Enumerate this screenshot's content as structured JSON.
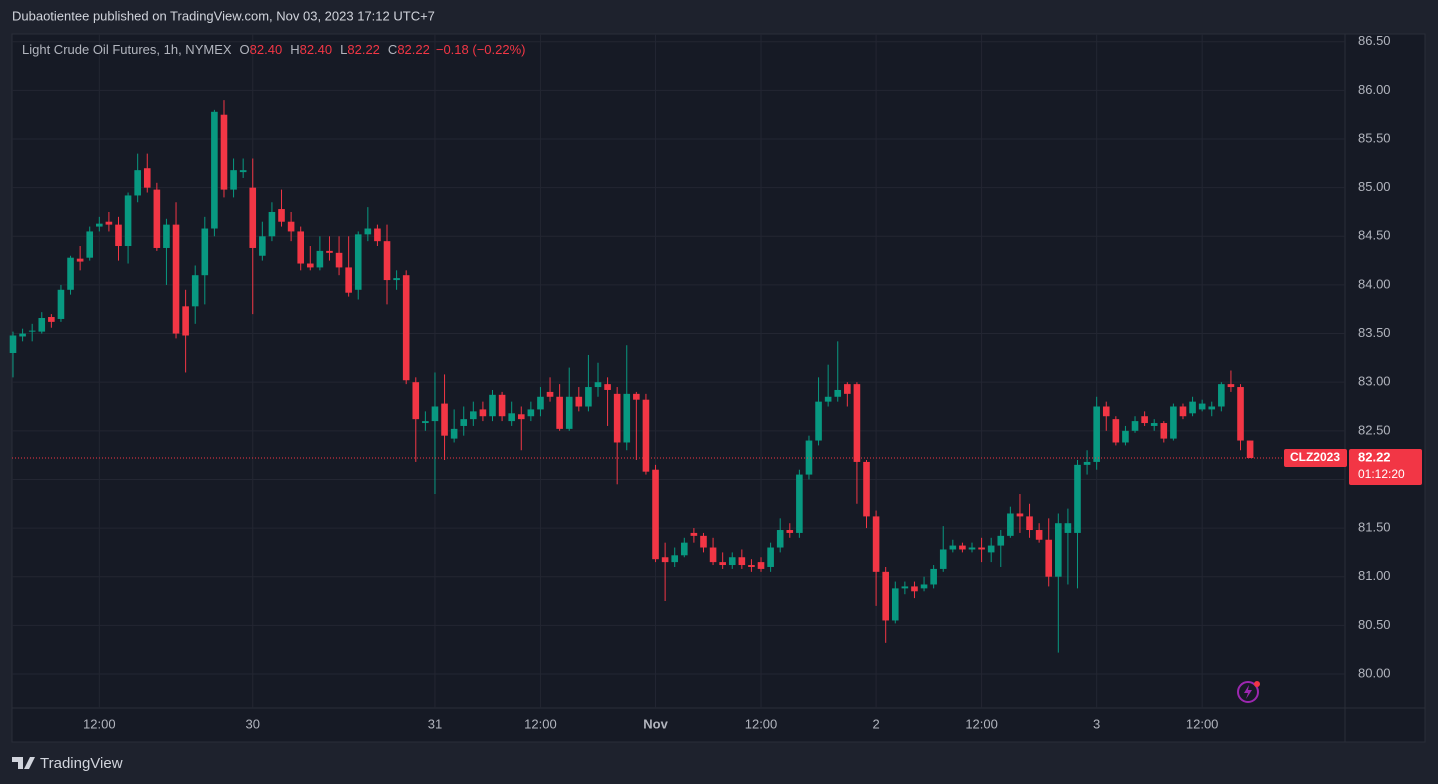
{
  "header": {
    "attribution": "Dubaotientee published on TradingView.com, Nov 03, 2023 17:12 UTC+7"
  },
  "footer": {
    "brand": "TradingView"
  },
  "chart_data": {
    "type": "candlestick",
    "title": "Light Crude Oil Futures, 1h, NYMEX",
    "ohlc": [
      {
        "key": "O",
        "text": "82.40"
      },
      {
        "key": "H",
        "text": "82.40"
      },
      {
        "key": "L",
        "text": "82.22"
      },
      {
        "key": "C",
        "text": "82.22"
      }
    ],
    "change": "−0.18 (−0.22%)",
    "up_color": "#089981",
    "down_color": "#f23645",
    "grid": true,
    "categories": [
      null,
      null,
      null,
      null,
      null,
      null,
      null,
      null,
      null,
      "12:00",
      null,
      null,
      null,
      null,
      null,
      null,
      null,
      null,
      null,
      null,
      null,
      null,
      null,
      null,
      null,
      "30",
      null,
      null,
      null,
      null,
      null,
      null,
      null,
      null,
      null,
      null,
      null,
      null,
      null,
      null,
      null,
      null,
      null,
      null,
      "31",
      null,
      null,
      null,
      null,
      null,
      null,
      null,
      null,
      null,
      null,
      "12:00",
      null,
      null,
      null,
      null,
      null,
      null,
      null,
      null,
      null,
      null,
      null,
      "Nov",
      null,
      null,
      null,
      null,
      null,
      null,
      null,
      null,
      null,
      null,
      "12:00",
      null,
      null,
      null,
      null,
      null,
      null,
      null,
      null,
      null,
      null,
      null,
      "2",
      null,
      null,
      null,
      null,
      null,
      null,
      null,
      null,
      null,
      null,
      "12:00",
      null,
      null,
      null,
      null,
      null,
      null,
      null,
      null,
      null,
      null,
      null,
      "3",
      null,
      null,
      null,
      null,
      null,
      null,
      null,
      null,
      null,
      null,
      "12:00",
      null,
      null,
      null,
      null,
      null
    ],
    "open": [
      83.3,
      83.47,
      83.52,
      83.52,
      83.67,
      83.65,
      83.95,
      84.27,
      84.28,
      84.6,
      84.65,
      84.62,
      84.4,
      84.92,
      85.2,
      84.98,
      84.38,
      84.62,
      83.78,
      83.78,
      84.1,
      84.58,
      85.75,
      84.98,
      85.16,
      85.0,
      84.3,
      84.5,
      84.78,
      84.65,
      84.55,
      84.22,
      84.18,
      84.35,
      84.33,
      84.18,
      83.95,
      84.52,
      84.58,
      84.45,
      84.05,
      84.1,
      83.0,
      82.58,
      82.6,
      82.78,
      82.42,
      82.55,
      82.62,
      82.72,
      82.65,
      82.87,
      82.6,
      82.67,
      82.65,
      82.72,
      82.9,
      82.85,
      82.52,
      82.85,
      82.75,
      82.95,
      82.98,
      82.88,
      82.38,
      82.88,
      82.82,
      82.1,
      81.2,
      81.15,
      81.22,
      81.45,
      81.42,
      81.3,
      81.15,
      81.12,
      81.2,
      81.12,
      81.15,
      81.1,
      81.3,
      81.48,
      81.45,
      82.05,
      82.4,
      82.8,
      82.85,
      82.98,
      82.98,
      82.18,
      81.62,
      81.05,
      80.55,
      80.88,
      80.9,
      80.88,
      80.92,
      81.08,
      81.28,
      81.32,
      81.28,
      81.3,
      81.25,
      81.32,
      81.42,
      81.65,
      81.62,
      81.48,
      81.38,
      81.0,
      81.45,
      81.45,
      82.15,
      82.18,
      82.75,
      82.62,
      82.38,
      82.5,
      82.65,
      82.55,
      82.58,
      82.42,
      82.75,
      82.68,
      82.72,
      82.72,
      82.75,
      82.98,
      82.95,
      82.4
    ],
    "high": [
      83.52,
      83.55,
      83.6,
      83.72,
      83.7,
      84.0,
      84.3,
      84.4,
      84.6,
      84.7,
      84.75,
      84.7,
      84.95,
      85.35,
      85.35,
      85.05,
      84.68,
      84.85,
      83.95,
      84.2,
      84.7,
      85.8,
      85.9,
      85.3,
      85.3,
      85.3,
      84.65,
      84.85,
      84.98,
      84.75,
      84.6,
      84.4,
      84.5,
      84.5,
      84.5,
      84.5,
      84.55,
      84.8,
      84.62,
      84.62,
      84.15,
      84.15,
      83.05,
      82.7,
      83.1,
      83.08,
      82.72,
      82.75,
      82.8,
      82.8,
      82.92,
      82.9,
      82.8,
      82.75,
      82.8,
      82.95,
      83.05,
      82.98,
      83.15,
      82.95,
      83.28,
      83.2,
      83.05,
      82.95,
      83.38,
      82.9,
      82.88,
      82.15,
      81.35,
      81.3,
      81.4,
      81.5,
      81.45,
      81.4,
      81.25,
      81.25,
      81.28,
      81.18,
      81.2,
      81.35,
      81.6,
      81.55,
      82.1,
      82.45,
      83.05,
      83.18,
      83.42,
      83.0,
      83.0,
      82.2,
      81.68,
      81.1,
      80.95,
      80.95,
      80.95,
      81.0,
      81.12,
      81.52,
      81.38,
      81.35,
      81.35,
      81.4,
      81.4,
      81.48,
      81.72,
      81.85,
      81.75,
      81.55,
      81.6,
      81.65,
      81.7,
      82.2,
      82.3,
      82.85,
      82.8,
      82.65,
      82.55,
      82.65,
      82.7,
      82.62,
      82.6,
      82.78,
      82.78,
      82.85,
      82.82,
      82.8,
      83.0,
      83.12,
      82.98,
      82.4
    ],
    "low": [
      83.05,
      83.42,
      83.42,
      83.5,
      83.56,
      83.62,
      83.9,
      84.15,
      84.25,
      84.55,
      84.55,
      84.25,
      84.22,
      84.85,
      84.95,
      84.35,
      84.0,
      83.45,
      83.1,
      83.6,
      83.8,
      84.5,
      84.9,
      84.9,
      85.1,
      83.7,
      84.25,
      84.45,
      84.6,
      84.45,
      84.15,
      84.15,
      84.15,
      84.25,
      84.1,
      83.88,
      83.85,
      84.45,
      84.4,
      83.8,
      83.95,
      82.98,
      82.18,
      82.5,
      81.85,
      82.2,
      82.38,
      82.45,
      82.55,
      82.6,
      82.6,
      82.6,
      82.55,
      82.3,
      82.6,
      82.65,
      82.8,
      82.5,
      82.5,
      82.7,
      82.7,
      82.85,
      82.55,
      81.95,
      82.3,
      82.2,
      82.05,
      81.15,
      80.75,
      81.1,
      81.2,
      81.35,
      81.25,
      81.12,
      81.08,
      81.08,
      81.08,
      81.05,
      81.05,
      81.05,
      81.25,
      81.4,
      81.4,
      82.0,
      82.35,
      82.75,
      82.8,
      82.75,
      81.75,
      81.5,
      80.7,
      80.32,
      80.52,
      80.82,
      80.78,
      80.85,
      80.88,
      81.05,
      81.25,
      81.25,
      81.25,
      81.15,
      81.15,
      81.1,
      81.4,
      81.45,
      81.4,
      81.35,
      80.9,
      80.22,
      80.92,
      80.88,
      82.05,
      82.1,
      82.5,
      82.35,
      82.35,
      82.48,
      82.55,
      82.5,
      82.38,
      82.4,
      82.62,
      82.65,
      82.7,
      82.65,
      82.7,
      82.9,
      82.3,
      82.22
    ],
    "close": [
      83.48,
      83.5,
      83.53,
      83.66,
      83.62,
      83.95,
      84.28,
      84.24,
      84.55,
      84.63,
      84.62,
      84.4,
      84.92,
      85.18,
      85.0,
      84.38,
      84.62,
      83.5,
      83.48,
      84.1,
      84.58,
      85.78,
      84.98,
      85.18,
      85.18,
      84.38,
      84.5,
      84.75,
      84.65,
      84.55,
      84.22,
      84.18,
      84.35,
      84.33,
      84.18,
      83.92,
      84.52,
      84.58,
      84.45,
      84.05,
      84.07,
      83.02,
      82.62,
      82.6,
      82.75,
      82.45,
      82.52,
      82.62,
      82.7,
      82.65,
      82.87,
      82.65,
      82.68,
      82.62,
      82.72,
      82.85,
      82.85,
      82.52,
      82.85,
      82.75,
      82.95,
      83.0,
      82.92,
      82.38,
      82.88,
      82.82,
      82.08,
      81.18,
      81.15,
      81.22,
      81.35,
      81.42,
      81.3,
      81.15,
      81.12,
      81.2,
      81.12,
      81.1,
      81.08,
      81.3,
      81.48,
      81.45,
      82.05,
      82.4,
      82.8,
      82.85,
      82.92,
      82.88,
      82.18,
      81.62,
      81.05,
      80.55,
      80.88,
      80.9,
      80.85,
      80.92,
      81.08,
      81.28,
      81.32,
      81.28,
      81.3,
      81.28,
      81.32,
      81.42,
      81.65,
      81.62,
      81.48,
      81.38,
      81.0,
      81.55,
      81.55,
      82.15,
      82.18,
      82.75,
      82.65,
      82.38,
      82.5,
      82.6,
      82.58,
      82.58,
      82.42,
      82.75,
      82.65,
      82.8,
      82.78,
      82.75,
      82.98,
      82.95,
      82.4,
      82.22
    ],
    "ylim": [
      79.65,
      86.58
    ],
    "yticks": [
      {
        "value": 80,
        "label": "80.00"
      },
      {
        "value": 80.5,
        "label": "80.50"
      },
      {
        "value": 81,
        "label": "81.00"
      },
      {
        "value": 81.5,
        "label": "81.50"
      },
      {
        "value": 82,
        "label": "82.00"
      },
      {
        "value": 82.5,
        "label": "82.50"
      },
      {
        "value": 83,
        "label": "83.00"
      },
      {
        "value": 83.5,
        "label": "83.50"
      },
      {
        "value": 84,
        "label": "84.00"
      },
      {
        "value": 84.5,
        "label": "84.50"
      },
      {
        "value": 85,
        "label": "85.00"
      },
      {
        "value": 85.5,
        "label": "85.50"
      },
      {
        "value": 86,
        "label": "86.00"
      },
      {
        "value": 86.5,
        "label": "86.50"
      }
    ],
    "last_price": {
      "value": 82.22,
      "label": "82.22"
    },
    "symbol": "CLZ2023",
    "countdown": "01:12:20"
  }
}
